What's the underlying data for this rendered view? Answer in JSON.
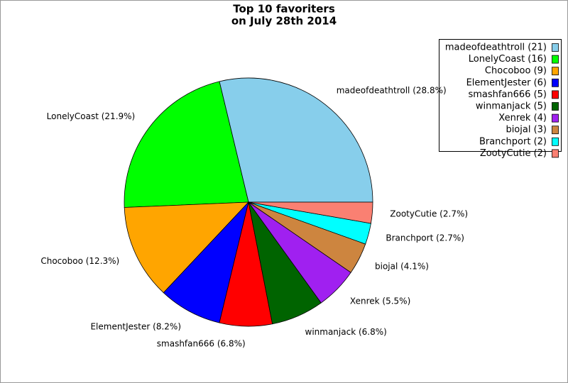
{
  "chart_data": {
    "type": "pie",
    "title": [
      "Top 10 favoriters",
      "on July 28th 2014"
    ],
    "categories": [
      "madeofdeathtroll",
      "LonelyCoast",
      "Chocoboo",
      "ElementJester",
      "smashfan666",
      "winmanjack",
      "Xenrek",
      "biojal",
      "Branchport",
      "ZootyCutie"
    ],
    "values": [
      21,
      16,
      9,
      6,
      5,
      5,
      4,
      3,
      2,
      2
    ],
    "slice_labels": [
      "madeofdeathtroll (28.8%)",
      "LonelyCoast (21.9%)",
      "Chocoboo (12.3%)",
      "ElementJester (8.2%)",
      "smashfan666 (6.8%)",
      "winmanjack (6.8%)",
      "Xenrek (5.5%)",
      "biojal (4.1%)",
      "Branchport (2.7%)",
      "ZootyCutie (2.7%)"
    ],
    "legend_labels": [
      "madeofdeathtroll (21)",
      "LonelyCoast (16)",
      "Chocoboo (9)",
      "ElementJester (6)",
      "smashfan666 (5)",
      "winmanjack (5)",
      "Xenrek (4)",
      "biojal (3)",
      "Branchport (2)",
      "ZootyCutie (2)"
    ],
    "colors": [
      "#87ceeb",
      "#00ff00",
      "#ffa500",
      "#0000ff",
      "#ff0000",
      "#006400",
      "#a020f0",
      "#cd853f",
      "#00ffff",
      "#fa8072"
    ],
    "legend": "upper right"
  }
}
